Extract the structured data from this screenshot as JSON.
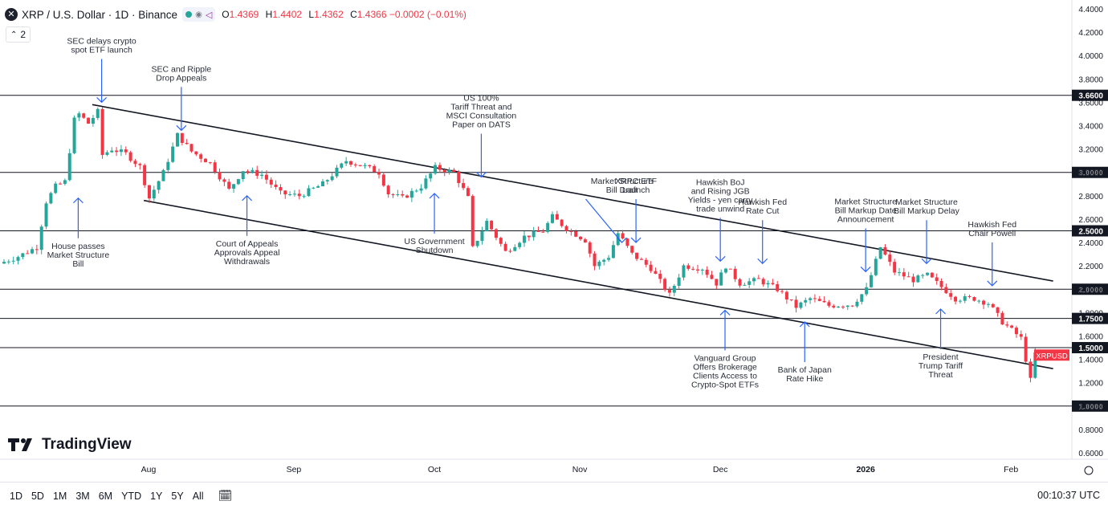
{
  "header": {
    "symbol": "XRP / U.S. Dollar · 1D · Binance",
    "open_label": "O",
    "open": "1.4369",
    "high_label": "H",
    "high": "1.4402",
    "low_label": "L",
    "low": "1.4362",
    "close_label": "C",
    "close": "1.4366 −0.0002 (−0.01%)",
    "indicators_count": "2"
  },
  "timeframes": [
    "1D",
    "5D",
    "1M",
    "3M",
    "6M",
    "YTD",
    "1Y",
    "5Y",
    "All"
  ],
  "clock": "00:10:37 UTC",
  "logo_text": "TradingView",
  "colors": {
    "up": "#26a69a",
    "down": "#f23645",
    "annotation": "#2962ff",
    "label_bg": "#f23645"
  },
  "chart_data": {
    "type": "candlestick",
    "title": "XRP / U.S. Dollar · 1D · Binance",
    "ylim": [
      0.6,
      4.4
    ],
    "yticks": [
      0.6,
      0.8,
      1.0,
      1.2,
      1.4,
      1.6,
      1.8,
      2.0,
      2.2,
      2.4,
      2.6,
      2.8,
      3.0,
      3.2,
      3.4,
      3.6,
      3.8,
      4.0,
      4.2,
      4.4
    ],
    "y_tick_labels": [
      "0.6000",
      "0.8000",
      "1.0000",
      "1.2000",
      "1.4000",
      "1.6000",
      "1.8000",
      "2.0000",
      "2.2000",
      "2.4000",
      "2.6000",
      "2.8000",
      "3.0000",
      "3.2000",
      "3.4000",
      "3.6000",
      "3.8000",
      "4.0000",
      "4.2000",
      "4.4000"
    ],
    "x_range": [
      "2025-07-01",
      "2026-02-14"
    ],
    "x_tick_labels": [
      {
        "date": "2025-08-01",
        "label": "Aug"
      },
      {
        "date": "2025-09-01",
        "label": "Sep"
      },
      {
        "date": "2025-10-01",
        "label": "Oct"
      },
      {
        "date": "2025-11-01",
        "label": "Nov"
      },
      {
        "date": "2025-12-01",
        "label": "Dec"
      },
      {
        "date": "2026-01-01",
        "label": "2026"
      },
      {
        "date": "2026-02-01",
        "label": "Feb"
      }
    ],
    "horizontal_levels": [
      {
        "value": 3.66,
        "label": "3.6600"
      },
      {
        "value": 3.0,
        "label": "3.0000"
      },
      {
        "value": 2.5,
        "label": "2.5000"
      },
      {
        "value": 2.0,
        "label": "2.0000"
      },
      {
        "value": 1.75,
        "label": "1.7500"
      },
      {
        "value": 1.5,
        "label": "1.5000"
      },
      {
        "value": 1.0,
        "label": "1.0000"
      }
    ],
    "last_price_label": "XRPUSD",
    "last_price": 1.4366,
    "channel": [
      {
        "name": "upper",
        "from": {
          "date": "2025-07-20",
          "y": 3.58
        },
        "to": {
          "date": "2026-02-10",
          "y": 2.07
        }
      },
      {
        "name": "lower",
        "from": {
          "date": "2025-07-31",
          "y": 2.76
        },
        "to": {
          "date": "2026-02-10",
          "y": 1.32
        }
      }
    ],
    "ohlc_anchors": [
      {
        "date": "2025-07-01",
        "c": 2.22
      },
      {
        "date": "2025-07-05",
        "c": 2.28
      },
      {
        "date": "2025-07-09",
        "c": 2.36
      },
      {
        "date": "2025-07-11",
        "c": 2.75
      },
      {
        "date": "2025-07-13",
        "c": 2.88
      },
      {
        "date": "2025-07-15",
        "c": 2.92
      },
      {
        "date": "2025-07-17",
        "c": 3.45
      },
      {
        "date": "2025-07-18",
        "c": 3.5
      },
      {
        "date": "2025-07-20",
        "c": 3.42
      },
      {
        "date": "2025-07-22",
        "c": 3.52
      },
      {
        "date": "2025-07-23",
        "c": 3.15
      },
      {
        "date": "2025-07-25",
        "c": 3.2
      },
      {
        "date": "2025-07-28",
        "c": 3.16
      },
      {
        "date": "2025-07-31",
        "c": 3.05
      },
      {
        "date": "2025-08-02",
        "c": 2.78
      },
      {
        "date": "2025-08-05",
        "c": 3.0
      },
      {
        "date": "2025-08-08",
        "c": 3.32
      },
      {
        "date": "2025-08-11",
        "c": 3.18
      },
      {
        "date": "2025-08-15",
        "c": 3.08
      },
      {
        "date": "2025-08-19",
        "c": 2.85
      },
      {
        "date": "2025-08-22",
        "c": 3.02
      },
      {
        "date": "2025-08-26",
        "c": 2.98
      },
      {
        "date": "2025-08-30",
        "c": 2.82
      },
      {
        "date": "2025-09-03",
        "c": 2.8
      },
      {
        "date": "2025-09-08",
        "c": 2.9
      },
      {
        "date": "2025-09-13",
        "c": 3.1
      },
      {
        "date": "2025-09-17",
        "c": 3.05
      },
      {
        "date": "2025-09-20",
        "c": 3.0
      },
      {
        "date": "2025-09-22",
        "c": 2.82
      },
      {
        "date": "2025-09-25",
        "c": 2.78
      },
      {
        "date": "2025-09-29",
        "c": 2.88
      },
      {
        "date": "2025-10-02",
        "c": 3.04
      },
      {
        "date": "2025-10-06",
        "c": 3.0
      },
      {
        "date": "2025-10-09",
        "c": 2.78
      },
      {
        "date": "2025-10-10",
        "c": 2.35
      },
      {
        "date": "2025-10-13",
        "c": 2.58
      },
      {
        "date": "2025-10-17",
        "c": 2.32
      },
      {
        "date": "2025-10-21",
        "c": 2.45
      },
      {
        "date": "2025-10-25",
        "c": 2.5
      },
      {
        "date": "2025-10-27",
        "c": 2.62
      },
      {
        "date": "2025-10-30",
        "c": 2.52
      },
      {
        "date": "2025-11-03",
        "c": 2.42
      },
      {
        "date": "2025-11-05",
        "c": 2.2
      },
      {
        "date": "2025-11-08",
        "c": 2.28
      },
      {
        "date": "2025-11-10",
        "c": 2.48
      },
      {
        "date": "2025-11-13",
        "c": 2.3
      },
      {
        "date": "2025-11-17",
        "c": 2.18
      },
      {
        "date": "2025-11-21",
        "c": 1.95
      },
      {
        "date": "2025-11-24",
        "c": 2.2
      },
      {
        "date": "2025-11-28",
        "c": 2.18
      },
      {
        "date": "2025-12-01",
        "c": 2.05
      },
      {
        "date": "2025-12-03",
        "c": 2.2
      },
      {
        "date": "2025-12-06",
        "c": 2.05
      },
      {
        "date": "2025-12-10",
        "c": 2.08
      },
      {
        "date": "2025-12-14",
        "c": 2.0
      },
      {
        "date": "2025-12-18",
        "c": 1.85
      },
      {
        "date": "2025-12-21",
        "c": 1.92
      },
      {
        "date": "2025-12-25",
        "c": 1.86
      },
      {
        "date": "2025-12-30",
        "c": 1.87
      },
      {
        "date": "2026-01-02",
        "c": 2.0
      },
      {
        "date": "2026-01-05",
        "c": 2.36
      },
      {
        "date": "2026-01-08",
        "c": 2.15
      },
      {
        "date": "2026-01-12",
        "c": 2.08
      },
      {
        "date": "2026-01-15",
        "c": 2.12
      },
      {
        "date": "2026-01-18",
        "c": 2.02
      },
      {
        "date": "2026-01-21",
        "c": 1.92
      },
      {
        "date": "2026-01-25",
        "c": 1.92
      },
      {
        "date": "2026-01-28",
        "c": 1.88
      },
      {
        "date": "2026-01-31",
        "c": 1.72
      },
      {
        "date": "2026-02-04",
        "c": 1.58
      },
      {
        "date": "2026-02-06",
        "c": 1.22
      },
      {
        "date": "2026-02-07",
        "c": 1.45
      },
      {
        "date": "2026-02-11",
        "c": 1.4366
      }
    ],
    "annotations": [
      {
        "text": [
          "SEC delays crypto",
          "spot ETF launch"
        ],
        "date": "2025-07-22",
        "y": 3.6,
        "arrow": "down"
      },
      {
        "text": [
          "SEC and Ripple",
          "Drop Appeals"
        ],
        "date": "2025-08-08",
        "y": 3.36,
        "arrow": "down"
      },
      {
        "text": [
          "US 100%",
          "Tariff Threat and",
          "MSCI Consultation",
          "Paper on DATS"
        ],
        "date": "2025-10-11",
        "y": 2.96,
        "arrow": "down-left"
      },
      {
        "text": [
          "Market Structure",
          "Bill Draft"
        ],
        "date": "2025-11-10",
        "y": 2.4,
        "arrow": "down-right"
      },
      {
        "text": [
          "XRPC ETF",
          "Launch"
        ],
        "date": "2025-11-13",
        "y": 2.4,
        "arrow": "down"
      },
      {
        "text": [
          "Hawkish BoJ",
          "and Rising JGB",
          "Yields - yen carry",
          "trade unwind"
        ],
        "date": "2025-12-01",
        "y": 2.24,
        "arrow": "down"
      },
      {
        "text": [
          "Hawkish Fed",
          "Rate Cut"
        ],
        "date": "2025-12-10",
        "y": 2.22,
        "arrow": "down"
      },
      {
        "text": [
          "Market Structure",
          "Bill Markup Date",
          "Announcement"
        ],
        "date": "2026-01-01",
        "y": 2.15,
        "arrow": "down"
      },
      {
        "text": [
          "Market Structure",
          "Bill Markup Delay"
        ],
        "date": "2026-01-14",
        "y": 2.22,
        "arrow": "down"
      },
      {
        "text": [
          "Hawkish Fed",
          "Chair Powell"
        ],
        "date": "2026-01-28",
        "y": 2.03,
        "arrow": "down"
      },
      {
        "text": [
          "House passes",
          "Market Structure",
          "Bill"
        ],
        "date": "2025-07-17",
        "y": 2.78,
        "arrow": "up"
      },
      {
        "text": [
          "Court of Appeals",
          "Approvals Appeal",
          "Withdrawals"
        ],
        "date": "2025-08-22",
        "y": 2.8,
        "arrow": "up"
      },
      {
        "text": [
          "US Government",
          "Shutdown"
        ],
        "date": "2025-10-01",
        "y": 2.82,
        "arrow": "up"
      },
      {
        "text": [
          "Vanguard Group",
          "Offers Brokerage",
          "Clients Access to",
          "Crypto-Spot ETFs"
        ],
        "date": "2025-12-02",
        "y": 1.82,
        "arrow": "up"
      },
      {
        "text": [
          "Bank of Japan",
          "Rate Hike"
        ],
        "date": "2025-12-19",
        "y": 1.72,
        "arrow": "up"
      },
      {
        "text": [
          "President",
          "Trump Tariff",
          "Threat"
        ],
        "date": "2026-01-17",
        "y": 1.83,
        "arrow": "up"
      }
    ]
  }
}
